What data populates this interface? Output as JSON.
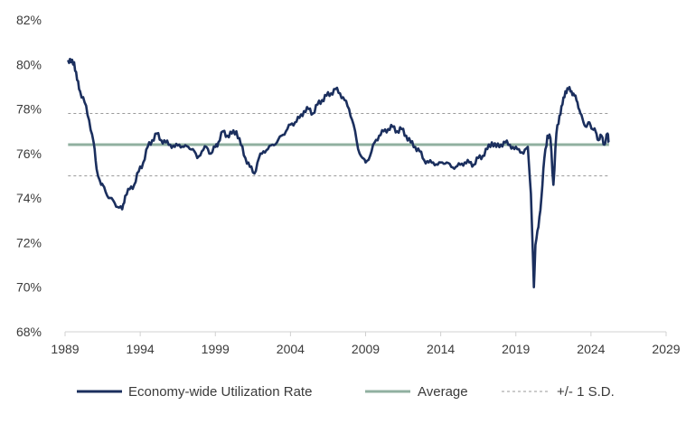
{
  "chart_data": {
    "type": "line",
    "title": "",
    "xlabel": "",
    "ylabel": "",
    "xlim": [
      1989,
      2029
    ],
    "ylim": [
      68,
      82
    ],
    "x_ticks": [
      1989,
      1994,
      1999,
      2004,
      2009,
      2014,
      2019,
      2024,
      2029
    ],
    "x_tick_labels": [
      "1989",
      "1994",
      "1999",
      "2004",
      "2009",
      "2014",
      "2019",
      "2024",
      "2029"
    ],
    "y_ticks": [
      68,
      70,
      72,
      74,
      76,
      78,
      80,
      82
    ],
    "y_tick_labels": [
      "68%",
      "70%",
      "72%",
      "74%",
      "76%",
      "78%",
      "80%",
      "82%"
    ],
    "grid": false,
    "legend_position": "bottom",
    "series": [
      {
        "name": "Economy-wide Utilization Rate",
        "color": "#1b2f5e",
        "style": "solid",
        "x": [
          1989.2,
          1989.4,
          1989.6,
          1989.8,
          1990.0,
          1990.3,
          1990.6,
          1990.9,
          1991.1,
          1991.4,
          1991.6,
          1991.9,
          1992.2,
          1992.5,
          1992.8,
          1993.0,
          1993.3,
          1993.6,
          1993.9,
          1994.2,
          1994.5,
          1994.8,
          1995.1,
          1995.4,
          1995.7,
          1996.0,
          1996.3,
          1996.6,
          1996.9,
          1997.2,
          1997.5,
          1997.8,
          1998.1,
          1998.4,
          1998.7,
          1999.0,
          1999.2,
          1999.5,
          1999.8,
          2000.1,
          2000.4,
          2000.7,
          2001.0,
          2001.3,
          2001.6,
          2001.9,
          2002.2,
          2002.5,
          2002.8,
          2003.1,
          2003.4,
          2003.7,
          2004.0,
          2004.3,
          2004.6,
          2004.9,
          2005.2,
          2005.5,
          2005.8,
          2006.1,
          2006.4,
          2006.7,
          2007.0,
          2007.3,
          2007.6,
          2007.9,
          2008.2,
          2008.5,
          2008.8,
          2009.0,
          2009.3,
          2009.6,
          2009.9,
          2010.2,
          2010.5,
          2010.8,
          2011.1,
          2011.4,
          2011.7,
          2012.0,
          2012.3,
          2012.6,
          2012.9,
          2013.2,
          2013.5,
          2013.8,
          2014.1,
          2014.4,
          2014.7,
          2015.0,
          2015.3,
          2015.6,
          2015.9,
          2016.2,
          2016.5,
          2016.8,
          2017.1,
          2017.4,
          2017.7,
          2018.0,
          2018.3,
          2018.6,
          2018.9,
          2019.2,
          2019.5,
          2019.8,
          2020.0,
          2020.2,
          2020.3,
          2020.5,
          2020.7,
          2020.9,
          2021.1,
          2021.3,
          2021.5,
          2021.7,
          2021.9,
          2022.1,
          2022.3,
          2022.5,
          2022.7,
          2022.9,
          2023.1,
          2023.3,
          2023.5,
          2023.7,
          2023.9,
          2024.1,
          2024.3,
          2024.5,
          2024.7,
          2024.9,
          2025.1,
          2025.2
        ],
        "values": [
          80.2,
          80.1,
          80.1,
          79.3,
          78.8,
          78.3,
          77.5,
          76.5,
          75.3,
          74.6,
          74.5,
          74.0,
          73.9,
          73.6,
          73.5,
          74.1,
          74.4,
          74.6,
          75.2,
          75.6,
          76.3,
          76.6,
          76.9,
          76.6,
          76.5,
          76.4,
          76.3,
          76.4,
          76.3,
          76.3,
          76.2,
          75.8,
          76.1,
          76.3,
          76.0,
          76.3,
          76.5,
          77.0,
          76.8,
          76.9,
          77.0,
          76.4,
          75.8,
          75.4,
          75.1,
          75.8,
          76.1,
          76.2,
          76.4,
          76.5,
          76.8,
          77.0,
          77.3,
          77.4,
          77.6,
          77.9,
          78.0,
          77.8,
          78.2,
          78.4,
          78.6,
          78.7,
          78.9,
          78.7,
          78.4,
          78.0,
          77.3,
          76.2,
          75.8,
          75.6,
          75.9,
          76.5,
          76.8,
          77.0,
          77.1,
          77.2,
          77.0,
          77.1,
          76.8,
          76.5,
          76.3,
          76.1,
          75.7,
          75.6,
          75.6,
          75.5,
          75.6,
          75.6,
          75.4,
          75.4,
          75.5,
          75.6,
          75.6,
          75.5,
          75.8,
          75.9,
          76.2,
          76.5,
          76.3,
          76.4,
          76.5,
          76.4,
          76.2,
          76.2,
          76.0,
          76.3,
          74.2,
          70.0,
          71.9,
          72.7,
          74.0,
          75.8,
          76.8,
          76.7,
          74.6,
          76.9,
          77.7,
          78.2,
          78.8,
          78.9,
          78.8,
          78.6,
          78.3,
          77.8,
          77.4,
          77.2,
          77.4,
          77.1,
          77.0,
          76.6,
          76.8,
          76.4,
          76.9,
          76.5
        ],
        "extra_noise_note": ""
      },
      {
        "name": "Average",
        "color": "#90b0a0",
        "style": "solid",
        "x": [
          1989.2,
          2025.2
        ],
        "values": [
          76.4,
          76.4
        ]
      },
      {
        "name": "+/- 1 S.D.",
        "color": "#9a9a9a",
        "style": "dashed",
        "x": [
          1989.2,
          2025.2
        ],
        "values": [
          77.8,
          77.8
        ],
        "x2": [
          1989.2,
          2025.2
        ],
        "values2": [
          75.0,
          75.0
        ]
      }
    ]
  },
  "legend": {
    "items": [
      {
        "label": "Economy-wide Utilization Rate",
        "color": "#1b2f5e",
        "style": "solid"
      },
      {
        "label": "Average",
        "color": "#90b0a0",
        "style": "solid"
      },
      {
        "label": "+/- 1 S.D.",
        "color": "#9a9a9a",
        "style": "dashed"
      }
    ]
  }
}
